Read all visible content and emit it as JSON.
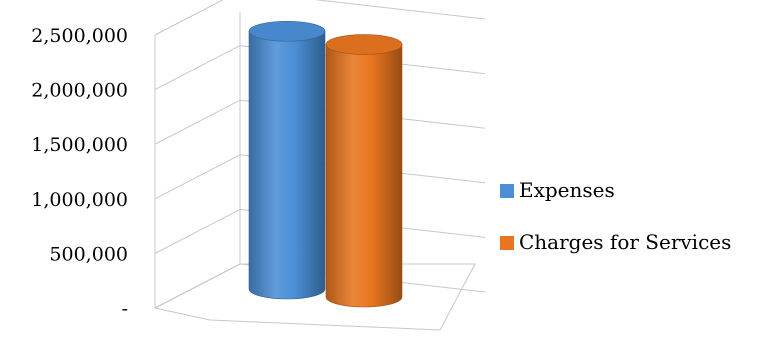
{
  "chart_data": {
    "type": "bar",
    "style": "3d-cylinder",
    "categories": [
      ""
    ],
    "series": [
      {
        "name": "Expenses",
        "values": [
          2450000
        ],
        "color": "#4A8FD6"
      },
      {
        "name": "Charges for Services",
        "values": [
          2400000
        ],
        "color": "#E8751F"
      }
    ],
    "y_tick_labels": [
      "-",
      "500,000",
      "1,000,000",
      "1,500,000",
      "2,000,000",
      "2,500,000"
    ],
    "ylim": [
      0,
      2500000
    ],
    "grid": true,
    "legend_position": "right"
  }
}
